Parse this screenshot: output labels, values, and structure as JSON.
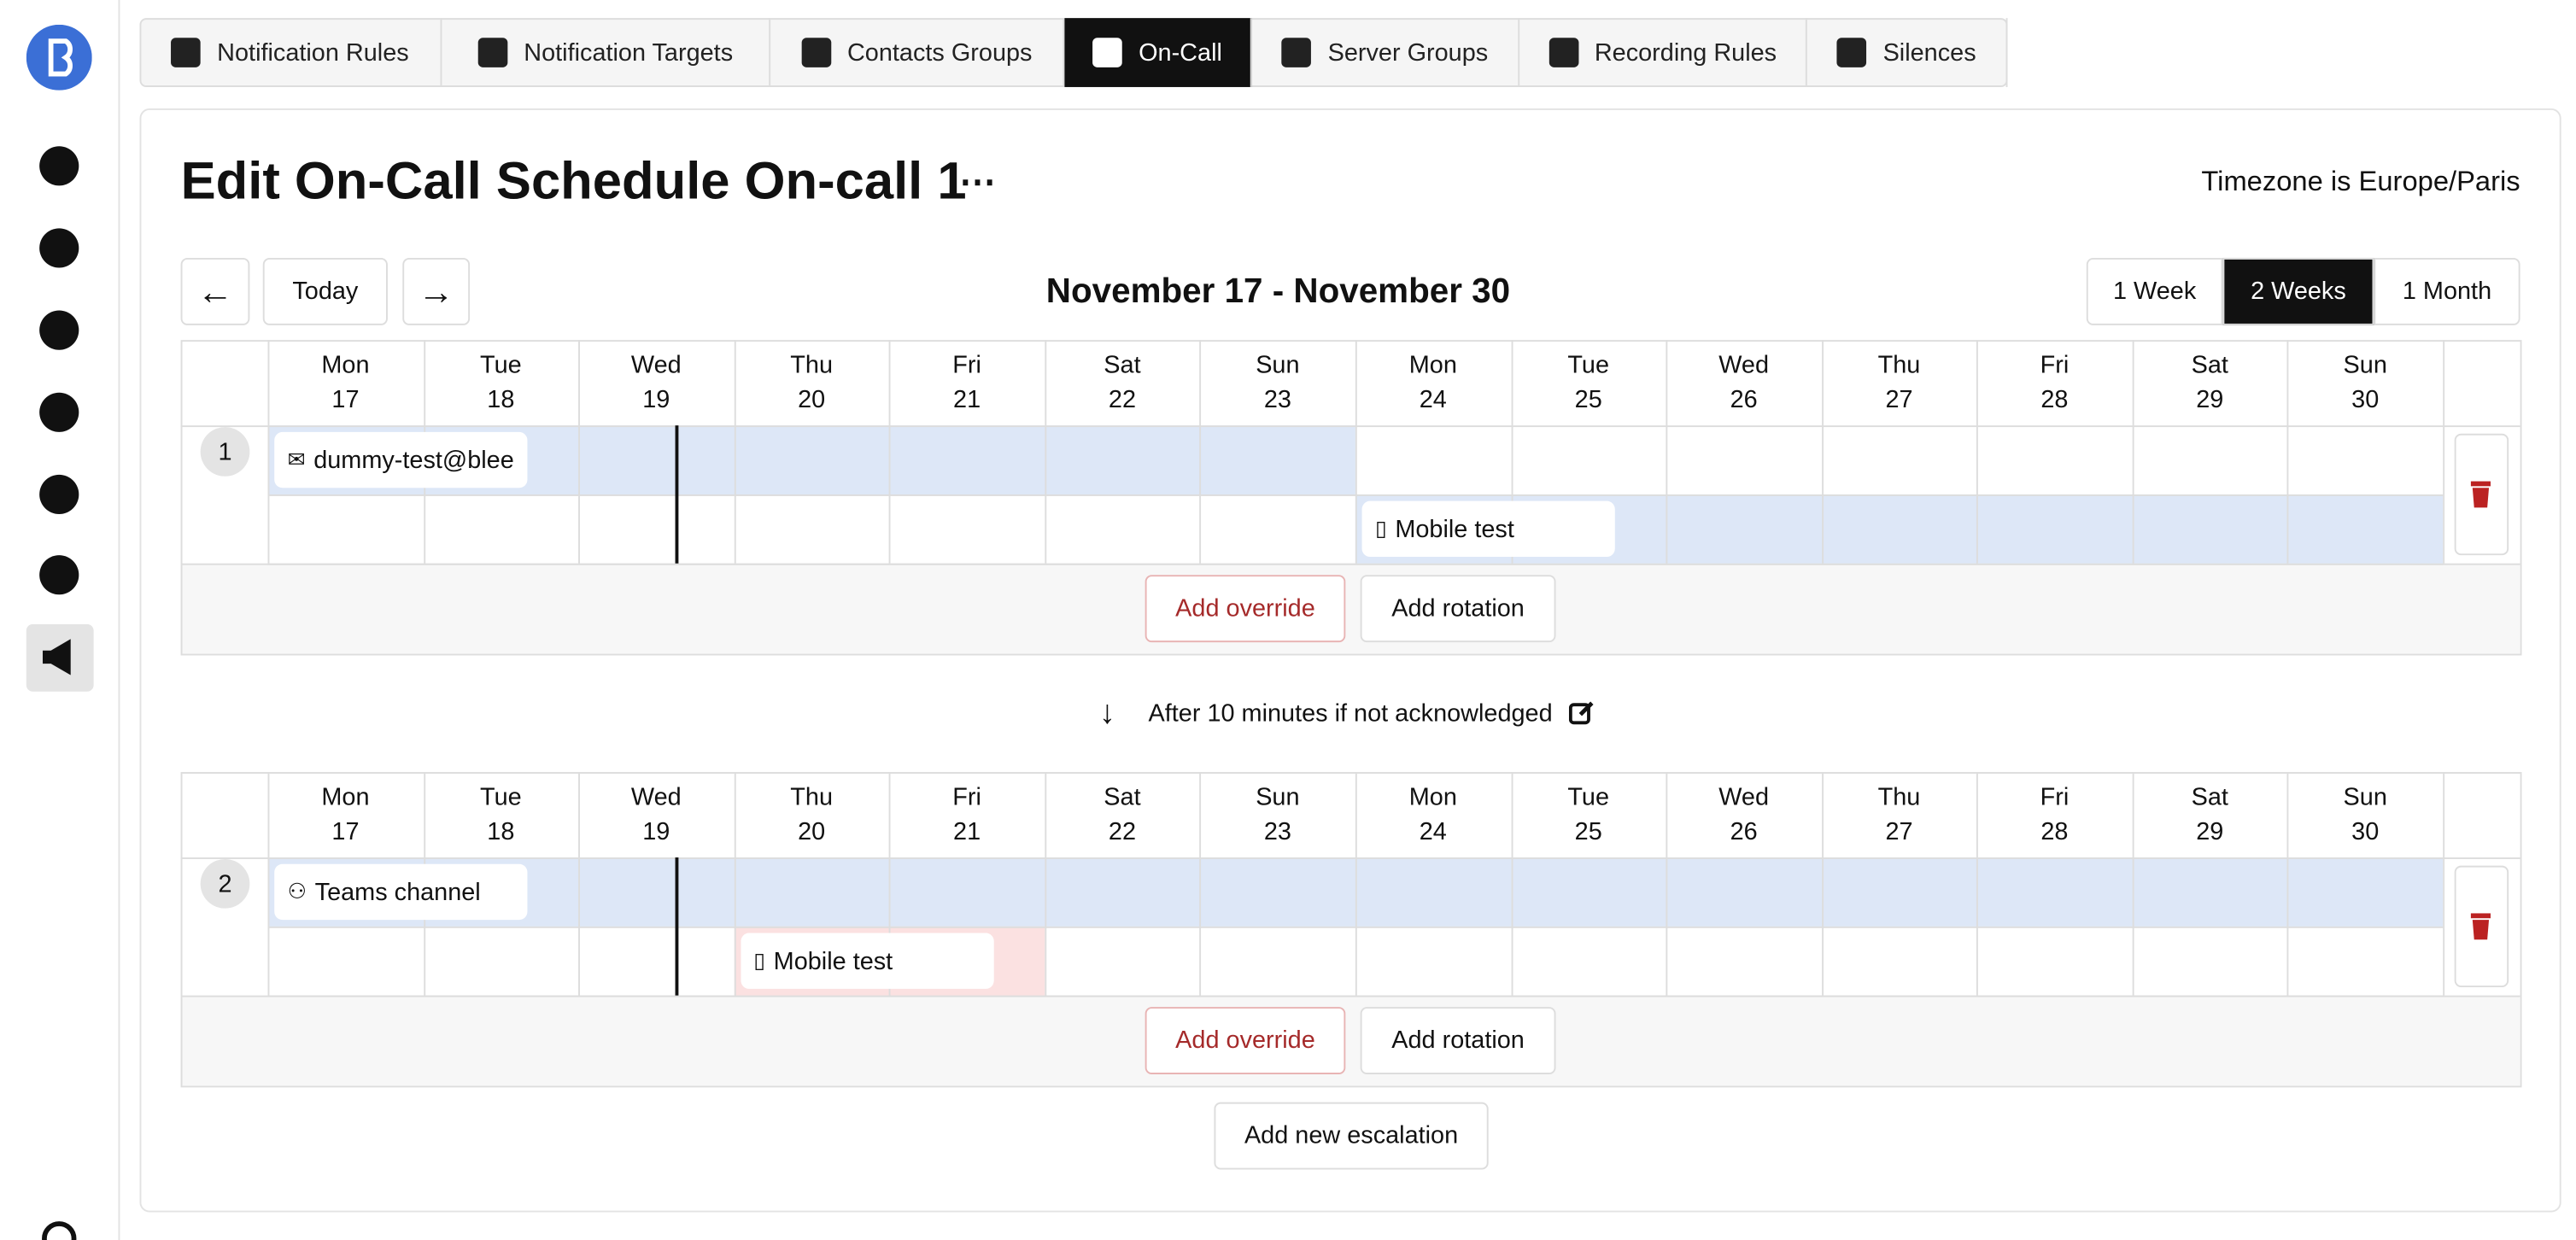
{
  "tabs": [
    "Notification Rules",
    "Notification Targets",
    "Contacts Groups",
    "On-Call",
    "Server Groups",
    "Recording Rules",
    "Silences"
  ],
  "title": "Edit On-Call Schedule On-call 1",
  "timezone": "Timezone is Europe/Paris",
  "toolbar": {
    "today": "Today",
    "range": "November 17 - November 30",
    "views": [
      "1 Week",
      "2 Weeks",
      "1 Month"
    ]
  },
  "escalations": [
    {
      "level": "1",
      "days": [
        {
          "dow": "Mon",
          "day": "17"
        },
        {
          "dow": "Tue",
          "day": "18"
        },
        {
          "dow": "Wed",
          "day": "19"
        },
        {
          "dow": "Thu",
          "day": "20"
        },
        {
          "dow": "Fri",
          "day": "21"
        },
        {
          "dow": "Sat",
          "day": "22"
        },
        {
          "dow": "Sun",
          "day": "23"
        },
        {
          "dow": "Mon",
          "day": "24"
        },
        {
          "dow": "Tue",
          "day": "25"
        },
        {
          "dow": "Wed",
          "day": "26"
        },
        {
          "dow": "Thu",
          "day": "27"
        },
        {
          "dow": "Fri",
          "day": "28"
        },
        {
          "dow": "Sat",
          "day": "29"
        },
        {
          "dow": "Sun",
          "day": "30"
        }
      ],
      "rotations": [
        {
          "label": "dummy-test@blee"
        },
        {
          "label": "Mobile test"
        }
      ],
      "actions": [
        "Add override",
        "Add rotation"
      ]
    },
    {
      "level": "2",
      "days": [
        {
          "dow": "Mon",
          "day": "17"
        },
        {
          "dow": "Tue",
          "day": "18"
        },
        {
          "dow": "Wed",
          "day": "19"
        },
        {
          "dow": "Thu",
          "day": "20"
        },
        {
          "dow": "Fri",
          "day": "21"
        },
        {
          "dow": "Sat",
          "day": "22"
        },
        {
          "dow": "Sun",
          "day": "23"
        },
        {
          "dow": "Mon",
          "day": "24"
        },
        {
          "dow": "Tue",
          "day": "25"
        },
        {
          "dow": "Wed",
          "day": "26"
        },
        {
          "dow": "Thu",
          "day": "27"
        },
        {
          "dow": "Fri",
          "day": "28"
        },
        {
          "dow": "Sat",
          "day": "29"
        },
        {
          "dow": "Sun",
          "day": "30"
        }
      ],
      "rotations": [
        {
          "label": "Teams channel"
        },
        {
          "label": "Mobile test"
        }
      ],
      "actions": [
        "Add override",
        "Add rotation"
      ]
    }
  ],
  "escalation_delay": "After 10 minutes if not acknowledged",
  "add_escalation": "Add new escalation"
}
